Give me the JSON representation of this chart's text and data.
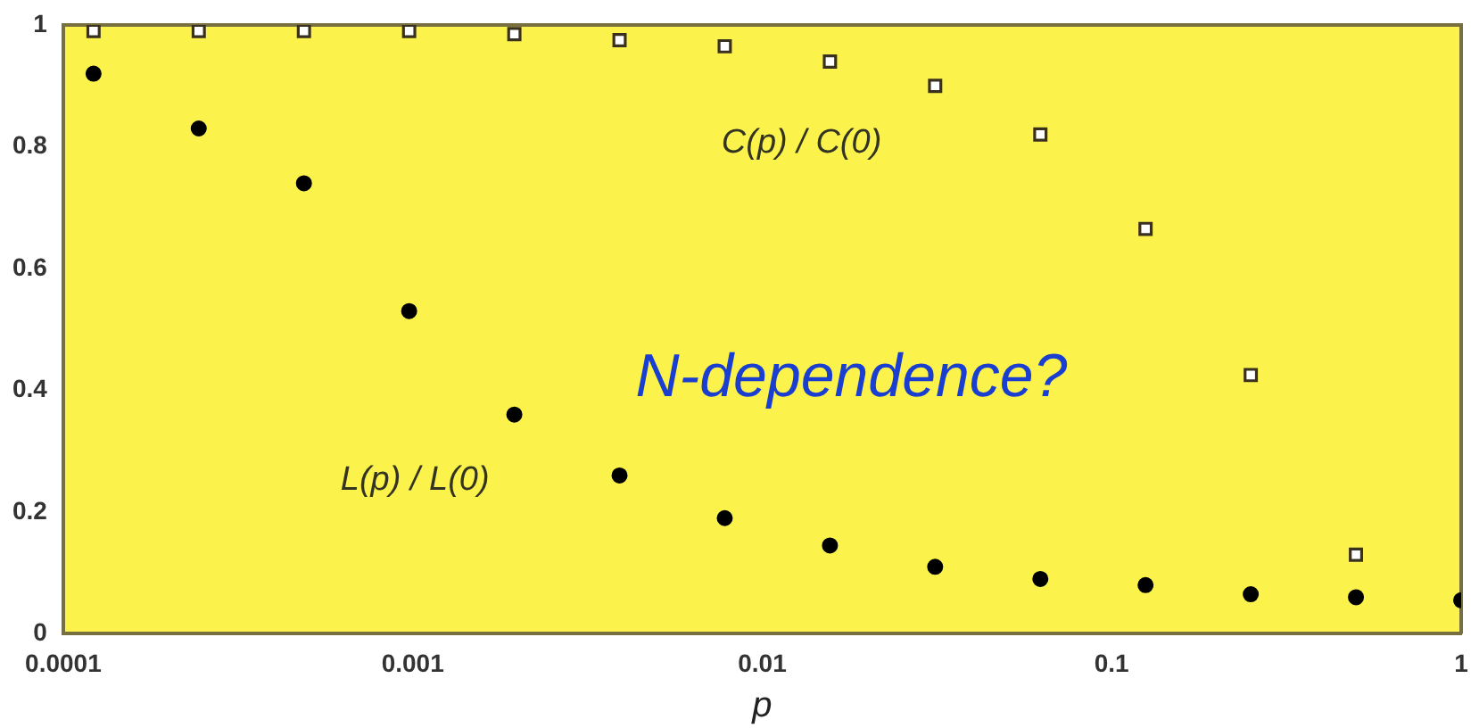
{
  "chart_data": {
    "type": "scatter",
    "xlabel": "p",
    "log": "x",
    "x": [
      0.00012207,
      0.00024414,
      0.00048828,
      0.00097656,
      0.0019531,
      0.0039063,
      0.0078125,
      0.015625,
      0.03125,
      0.0625,
      0.125,
      0.25,
      0.5,
      1
    ],
    "series": [
      {
        "name": "C(p) / C(0)",
        "color": "#3a3020",
        "marker": "square",
        "values": [
          0.99,
          0.99,
          0.99,
          0.99,
          0.985,
          0.975,
          0.965,
          0.94,
          0.9,
          0.82,
          0.665,
          0.425,
          0.13,
          null
        ]
      },
      {
        "name": "L(p) / L(0)",
        "color": "#000000",
        "marker": "circle",
        "values": [
          0.92,
          0.83,
          0.74,
          0.53,
          0.36,
          0.26,
          0.19,
          0.145,
          0.11,
          0.09,
          0.08,
          0.065,
          0.06,
          0.055
        ]
      }
    ],
    "annotations": [
      "N-dependence?"
    ],
    "xlim": [
      0.0001,
      1
    ],
    "xticks": [
      0.0001,
      0.001,
      0.01,
      0.1,
      1
    ],
    "ylim": [
      0,
      1
    ],
    "yticks": [
      0,
      0.2,
      0.4,
      0.6,
      0.8,
      1
    ],
    "grid": false,
    "legend": false
  }
}
